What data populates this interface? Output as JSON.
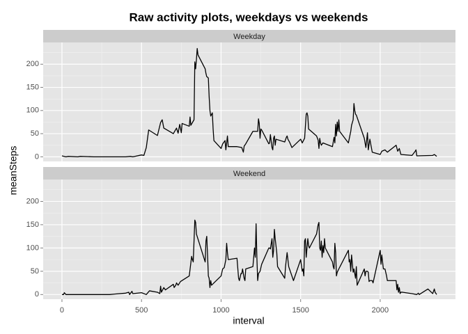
{
  "chart_data": {
    "type": "line",
    "title": "Raw activity plots, weekdays vs weekends",
    "x_label": "interval",
    "y_label": "meanSteps",
    "xlim": [
      -118,
      2473
    ],
    "ylim": [
      -10,
      247
    ],
    "xticks": [
      0,
      500,
      1000,
      1500,
      2000
    ],
    "yticks": [
      0,
      50,
      100,
      150,
      200
    ],
    "xminor": [
      250,
      750,
      1250,
      1750,
      2250
    ],
    "yminor": [
      25,
      75,
      125,
      175,
      225
    ],
    "grid": true,
    "series": [
      {
        "name": "Weekday",
        "color": "#000000",
        "x": [
          0,
          25,
          40,
          100,
          115,
          200,
          300,
          400,
          430,
          445,
          500,
          515,
          530,
          545,
          600,
          620,
          630,
          640,
          700,
          720,
          730,
          740,
          750,
          755,
          800,
          805,
          810,
          830,
          835,
          840,
          845,
          850,
          855,
          900,
          905,
          910,
          915,
          920,
          925,
          930,
          935,
          945,
          950,
          955,
          1000,
          1010,
          1025,
          1030,
          1040,
          1045,
          1100,
          1130,
          1140,
          1145,
          1155,
          1200,
          1230,
          1235,
          1240,
          1245,
          1250,
          1255,
          1300,
          1305,
          1310,
          1320,
          1325,
          1330,
          1335,
          1340,
          1345,
          1400,
          1410,
          1415,
          1420,
          1430,
          1445,
          1500,
          1510,
          1525,
          1535,
          1540,
          1545,
          1550,
          1600,
          1610,
          1615,
          1620,
          1625,
          1630,
          1640,
          1700,
          1710,
          1715,
          1720,
          1725,
          1730,
          1735,
          1740,
          1745,
          1800,
          1815,
          1820,
          1830,
          1835,
          1840,
          1845,
          1850,
          1900,
          1910,
          1920,
          1925,
          1935,
          1950,
          2000,
          2010,
          2030,
          2045,
          2100,
          2110,
          2120,
          2130,
          2200,
          2220,
          2225,
          2230,
          2330,
          2340,
          2355
        ],
        "values": [
          2,
          0,
          1,
          0,
          1,
          0,
          0,
          0,
          1,
          0,
          4,
          3,
          20,
          58,
          46,
          74,
          80,
          62,
          50,
          62,
          51,
          70,
          52,
          72,
          66,
          86,
          68,
          80,
          205,
          190,
          210,
          234,
          220,
          190,
          180,
          173,
          172,
          170,
          130,
          100,
          88,
          95,
          60,
          35,
          18,
          28,
          35,
          15,
          45,
          22,
          22,
          20,
          10,
          23,
          28,
          55,
          55,
          82,
          72,
          40,
          60,
          58,
          28,
          30,
          48,
          20,
          15,
          40,
          45,
          25,
          38,
          32,
          42,
          45,
          38,
          32,
          20,
          38,
          30,
          40,
          92,
          95,
          88,
          60,
          45,
          36,
          18,
          40,
          30,
          25,
          30,
          22,
          42,
          30,
          70,
          45,
          75,
          55,
          80,
          55,
          30,
          55,
          68,
          80,
          115,
          100,
          92,
          90,
          40,
          20,
          52,
          15,
          38,
          10,
          5,
          12,
          15,
          10,
          25,
          12,
          18,
          5,
          3,
          12,
          15,
          2,
          3,
          5,
          1
        ]
      },
      {
        "name": "Weekend",
        "color": "#000000",
        "x": [
          0,
          10,
          15,
          25,
          100,
          300,
          330,
          400,
          420,
          425,
          440,
          445,
          500,
          530,
          550,
          600,
          615,
          620,
          625,
          640,
          650,
          700,
          705,
          715,
          720,
          730,
          745,
          800,
          815,
          820,
          825,
          835,
          840,
          845,
          900,
          905,
          910,
          915,
          920,
          925,
          930,
          935,
          940,
          1000,
          1010,
          1020,
          1030,
          1035,
          1040,
          1045,
          1100,
          1110,
          1115,
          1125,
          1130,
          1135,
          1145,
          1150,
          1155,
          1200,
          1210,
          1215,
          1220,
          1225,
          1230,
          1235,
          1245,
          1255,
          1300,
          1305,
          1310,
          1320,
          1325,
          1330,
          1335,
          1340,
          1350,
          1355,
          1400,
          1405,
          1415,
          1425,
          1430,
          1440,
          1455,
          1500,
          1510,
          1515,
          1520,
          1525,
          1530,
          1535,
          1540,
          1545,
          1550,
          1555,
          1600,
          1605,
          1610,
          1615,
          1620,
          1625,
          1630,
          1635,
          1640,
          1645,
          1650,
          1655,
          1700,
          1705,
          1710,
          1715,
          1720,
          1725,
          1730,
          1740,
          1800,
          1805,
          1810,
          1815,
          1820,
          1830,
          1835,
          1845,
          1850,
          1855,
          1900,
          1905,
          1910,
          1920,
          1925,
          1930,
          1935,
          1950,
          1955,
          2000,
          2005,
          2010,
          2020,
          2030,
          2040,
          2045,
          2100,
          2105,
          2110,
          2115,
          2120,
          2125,
          2130,
          2140,
          2200,
          2230,
          2240,
          2245,
          2300,
          2330,
          2340,
          2345,
          2355
        ],
        "values": [
          0,
          0,
          4,
          0,
          0,
          0,
          1,
          3,
          5,
          0,
          7,
          2,
          4,
          0,
          8,
          5,
          2,
          18,
          5,
          15,
          10,
          22,
          15,
          20,
          25,
          20,
          28,
          40,
          82,
          75,
          70,
          160,
          155,
          130,
          70,
          115,
          125,
          85,
          40,
          35,
          15,
          30,
          20,
          40,
          55,
          58,
          75,
          110,
          90,
          75,
          78,
          35,
          30,
          45,
          45,
          55,
          35,
          30,
          55,
          60,
          100,
          80,
          152,
          80,
          30,
          45,
          50,
          65,
          100,
          100,
          98,
          120,
          80,
          95,
          140,
          120,
          90,
          60,
          35,
          60,
          90,
          60,
          55,
          45,
          30,
          75,
          50,
          55,
          40,
          115,
          120,
          80,
          100,
          120,
          105,
          100,
          130,
          140,
          150,
          155,
          100,
          95,
          115,
          80,
          105,
          90,
          120,
          100,
          70,
          60,
          55,
          110,
          90,
          40,
          48,
          55,
          95,
          70,
          75,
          50,
          85,
          48,
          55,
          35,
          60,
          20,
          55,
          40,
          50,
          50,
          48,
          28,
          30,
          30,
          25,
          95,
          65,
          85,
          55,
          55,
          40,
          30,
          30,
          10,
          22,
          5,
          15,
          2,
          5,
          5,
          2,
          0,
          3,
          0,
          12,
          2,
          12,
          5,
          0
        ]
      }
    ]
  }
}
